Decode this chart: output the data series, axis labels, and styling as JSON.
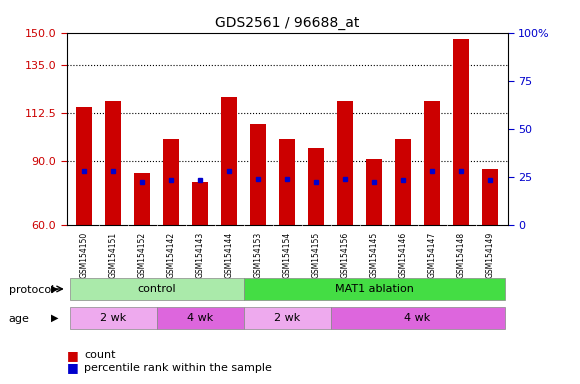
{
  "title": "GDS2561 / 96688_at",
  "samples": [
    "GSM154150",
    "GSM154151",
    "GSM154152",
    "GSM154142",
    "GSM154143",
    "GSM154144",
    "GSM154153",
    "GSM154154",
    "GSM154155",
    "GSM154156",
    "GSM154145",
    "GSM154146",
    "GSM154147",
    "GSM154148",
    "GSM154149"
  ],
  "bar_heights": [
    115,
    118,
    84,
    100,
    80,
    120,
    107,
    100,
    96,
    118,
    91,
    100,
    118,
    147,
    86
  ],
  "percentile_values": [
    28,
    28,
    22,
    23,
    23,
    28,
    24,
    24,
    22,
    24,
    22,
    23,
    28,
    28,
    23
  ],
  "ylim_left": [
    60,
    150
  ],
  "ylim_right": [
    0,
    100
  ],
  "yticks_left": [
    60,
    90,
    112.5,
    135,
    150
  ],
  "yticks_right": [
    0,
    25,
    50,
    75,
    100
  ],
  "grid_values": [
    90,
    112.5,
    135
  ],
  "bar_color": "#cc0000",
  "percentile_color": "#0000cc",
  "protocol_groups": [
    {
      "label": "control",
      "start": 0,
      "end": 5,
      "color": "#aaeaaa"
    },
    {
      "label": "MAT1 ablation",
      "start": 6,
      "end": 14,
      "color": "#44dd44"
    }
  ],
  "age_groups": [
    {
      "label": "2 wk",
      "start": 0,
      "end": 2,
      "color": "#eeaaee"
    },
    {
      "label": "4 wk",
      "start": 3,
      "end": 5,
      "color": "#dd66dd"
    },
    {
      "label": "2 wk",
      "start": 6,
      "end": 8,
      "color": "#eeaaee"
    },
    {
      "label": "4 wk",
      "start": 9,
      "end": 14,
      "color": "#dd66dd"
    }
  ],
  "xlabel_protocol": "protocol",
  "xlabel_age": "age",
  "legend_count": "count",
  "legend_percentile": "percentile rank within the sample",
  "tick_color_left": "#cc0000",
  "tick_color_right": "#0000cc",
  "bar_bottom": 60,
  "bg_color": "#ffffff",
  "xticklabel_bg": "#cccccc"
}
